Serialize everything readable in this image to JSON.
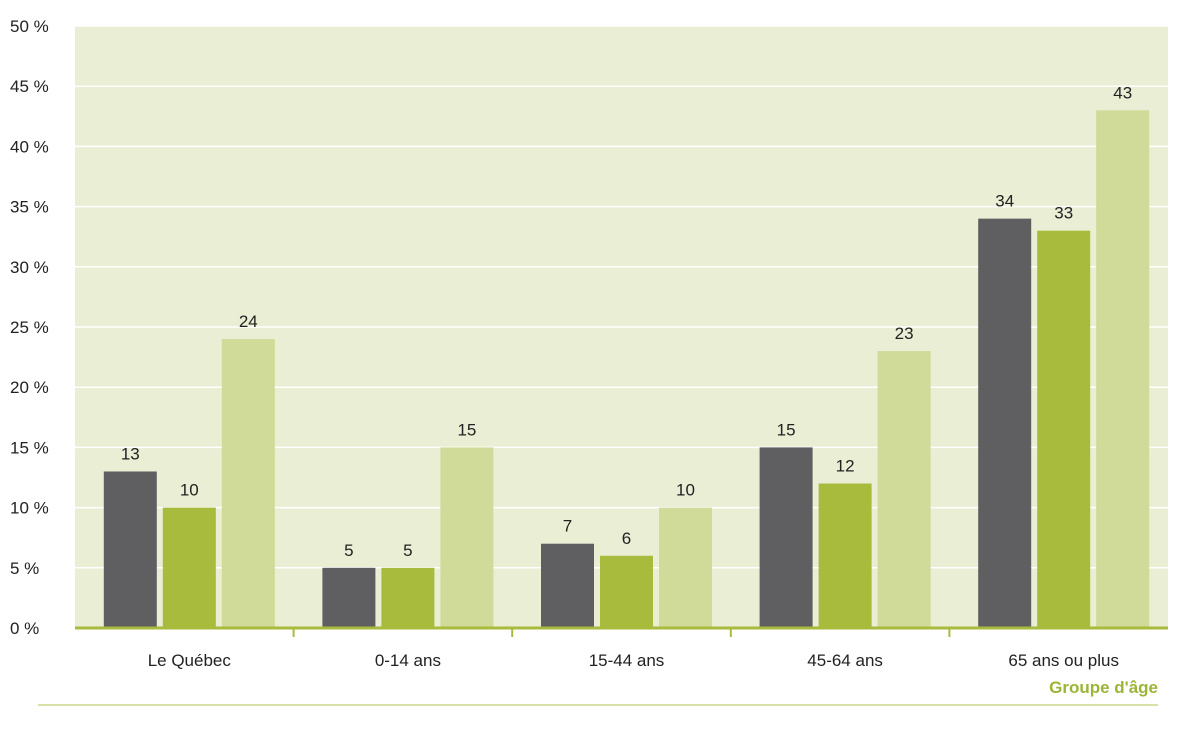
{
  "chart_data": {
    "type": "bar",
    "categories": [
      "Le Québec",
      "0-14 ans",
      "15-44 ans",
      "45-64 ans",
      "65 ans ou plus"
    ],
    "series": [
      {
        "values": [
          13,
          5,
          7,
          15,
          34
        ]
      },
      {
        "values": [
          10,
          5,
          6,
          12,
          33
        ]
      },
      {
        "values": [
          24,
          15,
          10,
          23,
          43
        ]
      }
    ],
    "title": "",
    "xlabel": "Groupe d'âge",
    "ylabel": "",
    "ylim": [
      0,
      50
    ],
    "yticks": [
      0,
      5,
      10,
      15,
      20,
      25,
      30,
      35,
      40,
      45,
      50
    ],
    "ytick_suffix": " %",
    "grid": true,
    "legend": "none"
  },
  "colors": {
    "series": [
      "#5f5f61",
      "#a8bb3c",
      "#d0db99"
    ],
    "plot_bg": "#e9eed4",
    "axis": "#a8bb3c",
    "gridline": "#ffffff",
    "xlabel": "#9bb537"
  }
}
